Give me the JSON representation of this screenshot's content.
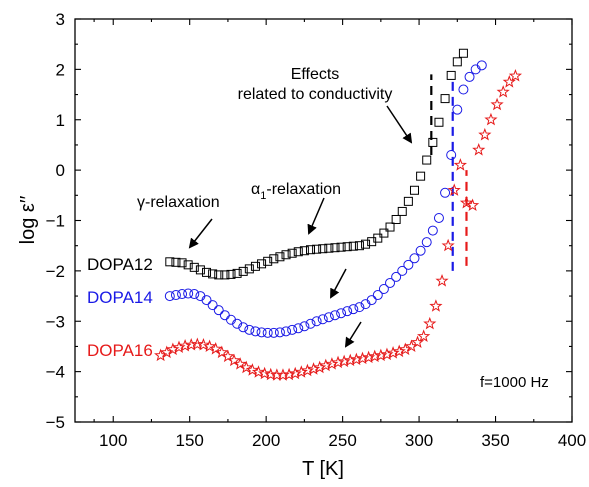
{
  "chart_data": {
    "type": "scatter",
    "title": "",
    "xlabel": "T [K]",
    "ylabel": "log ε′′",
    "xlim": [
      75,
      400
    ],
    "ylim": [
      -5,
      3
    ],
    "xticks": [
      100,
      150,
      200,
      250,
      300,
      350,
      400
    ],
    "yticks": [
      -5,
      -4,
      -3,
      -2,
      -1,
      0,
      1,
      2,
      3
    ],
    "grid": false,
    "frequency_label": "f=1000 Hz",
    "series": [
      {
        "name": "DOPA12",
        "color": "#000000",
        "marker": "square",
        "x": [
          137,
          141,
          145,
          149,
          153,
          157,
          161,
          165,
          169,
          173,
          177,
          181,
          185,
          189,
          193,
          197,
          201,
          205,
          209,
          213,
          217,
          221,
          225,
          229,
          233,
          237,
          241,
          245,
          249,
          253,
          257,
          261,
          265,
          269,
          273,
          277,
          281,
          285,
          289,
          293,
          297,
          301,
          305,
          309,
          313,
          317,
          321,
          325,
          329
        ],
        "y": [
          -1.82,
          -1.83,
          -1.84,
          -1.88,
          -1.93,
          -1.98,
          -2.03,
          -2.06,
          -2.08,
          -2.08,
          -2.07,
          -2.05,
          -2.01,
          -1.96,
          -1.91,
          -1.86,
          -1.81,
          -1.76,
          -1.72,
          -1.68,
          -1.65,
          -1.62,
          -1.6,
          -1.58,
          -1.57,
          -1.56,
          -1.55,
          -1.54,
          -1.53,
          -1.52,
          -1.51,
          -1.5,
          -1.47,
          -1.42,
          -1.35,
          -1.25,
          -1.13,
          -0.98,
          -0.82,
          -0.62,
          -0.4,
          -0.12,
          0.2,
          0.55,
          0.95,
          1.42,
          1.88,
          2.15,
          2.32
        ]
      },
      {
        "name": "DOPA14",
        "color": "#1a1ae6",
        "marker": "circle",
        "x": [
          137,
          141,
          145,
          149,
          153,
          157,
          161,
          165,
          169,
          173,
          177,
          181,
          185,
          189,
          193,
          197,
          201,
          205,
          209,
          213,
          217,
          221,
          225,
          229,
          233,
          237,
          241,
          245,
          249,
          253,
          257,
          261,
          265,
          269,
          273,
          277,
          281,
          285,
          289,
          293,
          297,
          301,
          305,
          309,
          313,
          317,
          321,
          325,
          329,
          333,
          337,
          341
        ],
        "y": [
          -2.5,
          -2.48,
          -2.46,
          -2.45,
          -2.46,
          -2.5,
          -2.58,
          -2.68,
          -2.78,
          -2.88,
          -2.97,
          -3.05,
          -3.12,
          -3.17,
          -3.2,
          -3.22,
          -3.23,
          -3.23,
          -3.22,
          -3.2,
          -3.17,
          -3.14,
          -3.1,
          -3.05,
          -3.0,
          -2.96,
          -2.92,
          -2.88,
          -2.84,
          -2.8,
          -2.76,
          -2.72,
          -2.66,
          -2.58,
          -2.48,
          -2.36,
          -2.24,
          -2.12,
          -2.0,
          -1.88,
          -1.75,
          -1.6,
          -1.43,
          -1.2,
          -0.95,
          -0.45,
          0.3,
          1.2,
          1.6,
          1.85,
          2.0,
          2.08
        ]
      },
      {
        "name": "DOPA16",
        "color": "#e61a1a",
        "marker": "star",
        "x": [
          131,
          135,
          139,
          143,
          147,
          151,
          155,
          159,
          163,
          167,
          171,
          175,
          179,
          183,
          187,
          191,
          195,
          199,
          203,
          207,
          211,
          215,
          219,
          223,
          227,
          231,
          235,
          239,
          243,
          247,
          251,
          255,
          259,
          263,
          267,
          271,
          275,
          279,
          283,
          287,
          291,
          295,
          299,
          303,
          307,
          311,
          315,
          319,
          323,
          327,
          331,
          335,
          339,
          343,
          347,
          351,
          355,
          359,
          363
        ],
        "y": [
          -3.68,
          -3.62,
          -3.56,
          -3.52,
          -3.49,
          -3.47,
          -3.46,
          -3.47,
          -3.5,
          -3.55,
          -3.62,
          -3.7,
          -3.78,
          -3.85,
          -3.92,
          -3.97,
          -4.01,
          -4.04,
          -4.06,
          -4.07,
          -4.07,
          -4.06,
          -4.04,
          -4.01,
          -3.98,
          -3.95,
          -3.92,
          -3.88,
          -3.85,
          -3.82,
          -3.8,
          -3.78,
          -3.76,
          -3.74,
          -3.72,
          -3.7,
          -3.68,
          -3.66,
          -3.63,
          -3.6,
          -3.56,
          -3.5,
          -3.42,
          -3.3,
          -3.05,
          -2.7,
          -2.2,
          -1.5,
          -0.4,
          0.1,
          -0.65,
          -0.7,
          0.4,
          0.7,
          1.0,
          1.3,
          1.55,
          1.75,
          1.87
        ]
      }
    ],
    "labels": [
      {
        "text": "DOPA12",
        "color": "#000000"
      },
      {
        "text": "DOPA14",
        "color": "#1a1ae6"
      },
      {
        "text": "DOPA16",
        "color": "#e61a1a"
      }
    ],
    "annotations": {
      "gamma": "γ-relaxation",
      "alpha_prefix": "α",
      "alpha_sub": "1",
      "alpha_suffix": "-relaxation",
      "effects_line1": "Effects",
      "effects_line2": "related to conductivity"
    },
    "dashed_markers": [
      {
        "color": "#000000",
        "x": 308,
        "y_from": 0.3,
        "y_to": 1.9
      },
      {
        "color": "#1a1ae6",
        "x": 322,
        "y_from": -2.0,
        "y_to": 1.8
      },
      {
        "color": "#e61a1a",
        "x": 331,
        "y_from": -1.9,
        "y_to": 0.0
      }
    ]
  }
}
